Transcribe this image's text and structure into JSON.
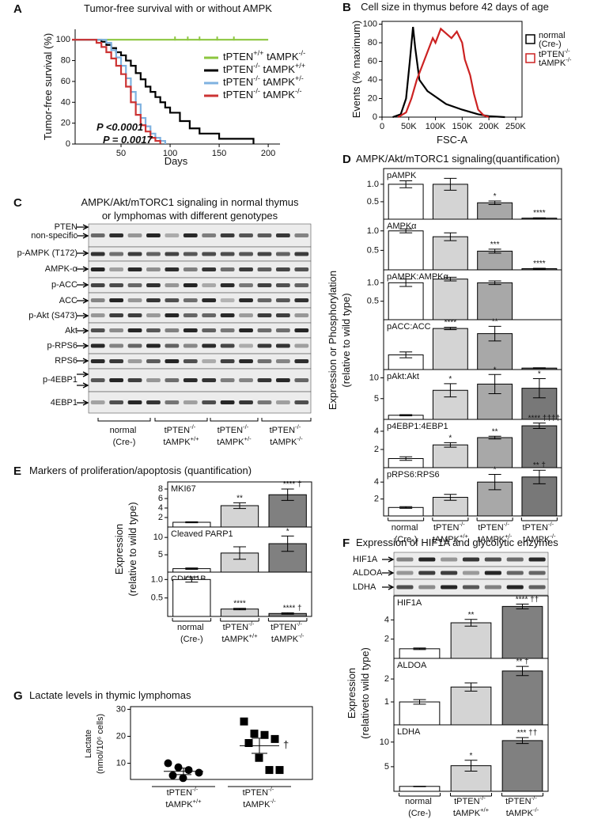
{
  "chart_data": [
    {
      "type": "line",
      "step": true,
      "label": "A",
      "title": "Tumor-free survival with or without AMPK",
      "xlabel": "Days",
      "ylabel": "Tumor-free survival (%)",
      "xlim": [
        0,
        212
      ],
      "ylim": [
        0,
        110
      ],
      "xticks": [
        50,
        100,
        150,
        200
      ],
      "yticks": [
        0,
        20,
        40,
        60,
        80,
        100
      ],
      "series": [
        {
          "name": "tPTEN+/+ tAMPK-/-",
          "color": "#8cc63f",
          "x": [
            0,
            200
          ],
          "values": [
            100,
            100
          ],
          "censored": [
            105,
            118,
            130,
            148,
            165
          ]
        },
        {
          "name": "tPTEN-/- tAMPK+/+",
          "color": "#000000",
          "x": [
            0,
            30,
            35,
            40,
            45,
            50,
            55,
            60,
            65,
            70,
            75,
            80,
            85,
            90,
            95,
            100,
            110,
            120,
            130,
            150,
            185
          ],
          "values": [
            100,
            98,
            95,
            92,
            88,
            85,
            80,
            75,
            68,
            62,
            55,
            50,
            45,
            40,
            35,
            30,
            22,
            15,
            10,
            5,
            0
          ]
        },
        {
          "name": "tPTEN-/- tAMPK+/-",
          "color": "#7fb2e0",
          "x": [
            0,
            35,
            40,
            45,
            50,
            55,
            60,
            65,
            70,
            75,
            80,
            85,
            90,
            95
          ],
          "values": [
            100,
            97,
            90,
            83,
            75,
            63,
            50,
            38,
            25,
            17,
            10,
            6,
            3,
            0
          ]
        },
        {
          "name": "tPTEN-/- tAMPK-/-",
          "color": "#cc3333",
          "x": [
            0,
            25,
            30,
            35,
            40,
            45,
            50,
            55,
            60,
            65,
            70,
            75,
            80,
            85,
            90
          ],
          "values": [
            100,
            97,
            93,
            88,
            82,
            75,
            67,
            55,
            40,
            28,
            18,
            12,
            6,
            3,
            0
          ]
        }
      ],
      "annotations": [
        {
          "text": "P <0.0001",
          "color": "#cc3333"
        },
        {
          "text": "P = 0.0017",
          "color": "#7fb2e0"
        }
      ]
    },
    {
      "type": "line",
      "label": "B",
      "title": "Cell size in thymus before 42 days of age",
      "xlabel": "FSC-A",
      "ylabel": "Events (% maximum)",
      "xlim": [
        0,
        262000
      ],
      "ylim": [
        0,
        103
      ],
      "xticks": [
        0,
        {
          "value": 50000,
          "label": "50K"
        },
        {
          "value": 100000,
          "label": "100K"
        },
        {
          "value": 150000,
          "label": "150K"
        },
        {
          "value": 200000,
          "label": "200K"
        },
        {
          "value": 250000,
          "label": "250K"
        }
      ],
      "yticks": [
        0,
        20,
        40,
        60,
        80,
        100
      ],
      "series": [
        {
          "name": "normal (Cre-)",
          "color": "#000000",
          "x": [
            20000,
            35000,
            45000,
            52000,
            58000,
            62000,
            70000,
            85000,
            100000,
            120000,
            150000,
            180000,
            200000,
            230000
          ],
          "values": [
            0,
            3,
            20,
            60,
            97,
            75,
            40,
            28,
            22,
            14,
            8,
            3,
            1,
            0
          ]
        },
        {
          "name": "tPTEN-/- tAMPK-/-",
          "color": "#cc2222",
          "x": [
            30000,
            45000,
            55000,
            65000,
            75000,
            85000,
            95000,
            100000,
            110000,
            120000,
            130000,
            140000,
            150000,
            155000,
            165000,
            172000,
            180000,
            190000,
            200000
          ],
          "values": [
            0,
            5,
            20,
            40,
            55,
            70,
            85,
            80,
            95,
            90,
            85,
            92,
            80,
            62,
            45,
            25,
            8,
            2,
            0
          ]
        }
      ]
    },
    {
      "type": "blot",
      "label": "C",
      "title": [
        "AMPK/Akt/mTORC1 signaling in normal thymus",
        "or lymphomas with different genotypes"
      ],
      "rows": [
        "PTEN",
        "non-specific",
        "p-AMPK (T172)",
        "AMPK-α",
        "p-ACC",
        "ACC",
        "p-Akt (S473)",
        "Akt",
        "p-RPS6",
        "RPS6",
        "p-4EBP1",
        "4EBP1"
      ],
      "groups": [
        "normal (Cre-)",
        "tPTEN-/- tAMPK+/+",
        "tPTEN-/- tAMPK+/-",
        "tPTEN-/- tAMPK-/-"
      ]
    },
    {
      "type": "bar",
      "label": "D",
      "title": "AMPK/Akt/mTORC1 signaling(quantification)",
      "ylabel": [
        "Expression or Phosphorylation",
        "(relative to wild type)"
      ],
      "categories": [
        "normal (Cre-)",
        "tPTEN-/- tAMPK+/+",
        "tPTEN-/- tAMPK+/-",
        "tPTEN-/- tAMPK-/-"
      ],
      "colors": [
        "#ffffff",
        "#d4d4d4",
        "#a8a8a8",
        "#787878"
      ],
      "panels": [
        {
          "name": "pAMPK",
          "ylim": [
            0,
            1.45
          ],
          "yticks": [
            0.5,
            {
              "value": 1,
              "label": "1.0"
            }
          ],
          "values": [
            1,
            1,
            0.47,
            0.03
          ],
          "errors": [
            0.1,
            0.17,
            0.05,
            0.01
          ],
          "stars": [
            null,
            null,
            "*",
            "****"
          ]
        },
        {
          "name": "AMPKα",
          "ylim": [
            0,
            1.3
          ],
          "yticks": [
            0.5,
            {
              "value": 1,
              "label": "1.0"
            }
          ],
          "values": [
            1,
            0.85,
            0.48,
            0.03
          ],
          "errors": [
            0.05,
            0.1,
            0.05,
            0.01
          ],
          "stars": [
            null,
            null,
            "***",
            "****"
          ]
        },
        {
          "name": "pAMPK:AMPKα",
          "ylim": [
            0,
            1.35
          ],
          "yticks": [
            0.5,
            {
              "value": 1,
              "label": "1.0"
            }
          ],
          "values": [
            1,
            1.1,
            1.0,
            null
          ],
          "errors": [
            0.1,
            0.05,
            0.05,
            null
          ],
          "stars": [
            null,
            null,
            null,
            null
          ]
        },
        {
          "name": "pACC:ACC",
          "ylim": [
            0,
            3.4
          ],
          "yticks": [],
          "values": [
            1,
            2.8,
            2.45,
            0.1
          ],
          "errors": [
            0.2,
            0.08,
            0.5,
            0.02
          ],
          "stars": [
            null,
            "****",
            "**",
            null
          ]
        },
        {
          "name": "pAkt:Akt",
          "ylim": [
            0,
            12
          ],
          "yticks": [
            5,
            10
          ],
          "values": [
            1,
            7,
            8.5,
            7.5
          ],
          "errors": [
            0.15,
            1.6,
            2.3,
            2.3
          ],
          "stars": [
            null,
            "*",
            "*",
            "*"
          ]
        },
        {
          "name": "p4EBP1:4EBP1",
          "ylim": [
            0,
            5.3
          ],
          "yticks": [
            2,
            4
          ],
          "values": [
            1,
            2.5,
            3.3,
            4.6
          ],
          "errors": [
            0.2,
            0.25,
            0.15,
            0.3
          ],
          "stars": [
            null,
            "*",
            "**",
            "**** ††††"
          ]
        },
        {
          "name": "pRPS6:RPS6",
          "ylim": [
            0,
            5.7
          ],
          "yticks": [
            2,
            4
          ],
          "values": [
            1,
            2.2,
            4,
            4.6
          ],
          "errors": [
            0.1,
            0.35,
            0.9,
            0.8
          ],
          "stars": [
            null,
            null,
            "*",
            "** †"
          ]
        }
      ]
    },
    {
      "type": "bar",
      "label": "E",
      "title": "Markers of proliferation/apoptosis (quantification)",
      "ylabel": [
        "Expression",
        "(relative to wild type)"
      ],
      "categories": [
        "normal (Cre-)",
        "tPTEN-/- tAMPK+/+",
        "tPTEN-/- tAMPK-/-"
      ],
      "colors": [
        "#ffffff",
        "#d4d4d4",
        "#808080"
      ],
      "panels": [
        {
          "name": "MKI67",
          "ylim": [
            0,
            9.5
          ],
          "yticks": [
            2,
            4,
            6,
            8
          ],
          "values": [
            1,
            4.5,
            6.8
          ],
          "errors": [
            0.1,
            0.6,
            1.2
          ],
          "stars": [
            null,
            "**",
            "**** †"
          ]
        },
        {
          "name": "Cleaved PARP1",
          "ylim": [
            0,
            13
          ],
          "yticks": [
            5,
            10
          ],
          "values": [
            1,
            5.5,
            8.2
          ],
          "errors": [
            0.2,
            1.8,
            2.2
          ],
          "stars": [
            null,
            null,
            "*"
          ]
        },
        {
          "name": "CDKN1B",
          "ylim": [
            0,
            1.2
          ],
          "yticks": [
            0.5,
            {
              "value": 1,
              "label": "1.0"
            }
          ],
          "values": [
            1,
            0.2,
            0.08
          ],
          "errors": [
            0.07,
            0.02,
            0.02
          ],
          "stars": [
            null,
            "****",
            "**** †"
          ]
        }
      ]
    },
    {
      "type": "bar",
      "label": "F",
      "title": "Expression of HIF1A and glycolytic enzymes",
      "ylabel": [
        "Expression",
        "(relativeto wild type)"
      ],
      "blot_rows": [
        "HIF1A",
        "ALDOA",
        "LDHA"
      ],
      "categories": [
        "normal (Cre-)",
        "tPTEN-/- tAMPK+/+",
        "tPTEN-/- tAMPK-/-"
      ],
      "colors": [
        "#ffffff",
        "#d4d4d4",
        "#808080"
      ],
      "panels": [
        {
          "name": "HIF1A",
          "ylim": [
            0,
            6.5
          ],
          "yticks": [
            2,
            4
          ],
          "values": [
            1,
            3.7,
            5.4
          ],
          "errors": [
            0.08,
            0.35,
            0.25
          ],
          "stars": [
            null,
            "**",
            "**** ††"
          ]
        },
        {
          "name": "ALDOA",
          "ylim": [
            0,
            2.9
          ],
          "yticks": [
            1,
            2
          ],
          "values": [
            1,
            1.65,
            2.35
          ],
          "errors": [
            0.1,
            0.18,
            0.2
          ],
          "stars": [
            null,
            null,
            "** †"
          ]
        },
        {
          "name": "LDHA",
          "ylim": [
            0,
            13.5
          ],
          "yticks": [
            5,
            10
          ],
          "values": [
            1,
            5.2,
            10.3
          ],
          "errors": [
            0.05,
            1.1,
            0.6
          ],
          "stars": [
            null,
            "*",
            "*** ††"
          ]
        }
      ]
    },
    {
      "type": "scatter",
      "label": "G",
      "title": "Lactate levels in thymic lymphomas",
      "ylabel": [
        "Lactate",
        "(nmol/10⁶ cells)"
      ],
      "categories": [
        "tPTEN-/- tAMPK+/+",
        "tPTEN-/- tAMPK-/-"
      ],
      "ylim": [
        4,
        31
      ],
      "yticks": [
        10,
        20,
        30
      ],
      "groups": [
        {
          "marker": "circle",
          "values": [
            10,
            8.5,
            7.5,
            6.5,
            5.5,
            4.5
          ],
          "mean": 7,
          "error": 1.2
        },
        {
          "marker": "square",
          "values": [
            25.5,
            21,
            20.5,
            19,
            17.5,
            12,
            7.5,
            7.5
          ],
          "mean": 16.5,
          "error": 2.8
        }
      ],
      "annotations": [
        "†"
      ]
    }
  ]
}
